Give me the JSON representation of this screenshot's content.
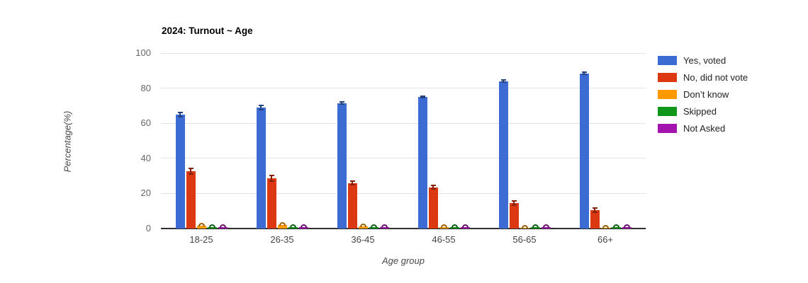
{
  "chart_data": {
    "type": "bar",
    "title": "2024: Turnout ~ Age",
    "xlabel": "Age group",
    "ylabel": "Percentage(%)",
    "categories": [
      "18-25",
      "26-35",
      "36-45",
      "46-55",
      "56-65",
      "66+"
    ],
    "series": [
      {
        "name": "Yes, voted",
        "color": "#3b6bd3",
        "values": [
          65,
          69,
          71.5,
          75,
          84,
          88.5
        ],
        "errors": [
          1.5,
          1.5,
          1,
          1,
          1,
          1
        ]
      },
      {
        "name": "No, did not vote",
        "color": "#dc3912",
        "values": [
          32.5,
          28.5,
          26,
          23.5,
          14.5,
          10.5
        ],
        "errors": [
          2,
          2,
          1.5,
          1.5,
          1.5,
          1.5
        ]
      },
      {
        "name": "Don’t know",
        "color": "#ff9900",
        "values": [
          1.5,
          2,
          1.2,
          1,
          0.5,
          0.3
        ],
        "errors": [
          0.6,
          0.6,
          0.5,
          0.5,
          0.4,
          0.3
        ]
      },
      {
        "name": "Skipped",
        "color": "#109618",
        "values": [
          1,
          0.8,
          0.8,
          0.8,
          0.8,
          0.9
        ],
        "errors": [
          0.5,
          0.4,
          0.4,
          0.4,
          0.4,
          0.4
        ]
      },
      {
        "name": "Not Asked",
        "color": "#a313ad",
        "values": [
          0.8,
          0.7,
          0.8,
          0.8,
          0.7,
          0.9
        ],
        "errors": [
          0.4,
          0.4,
          0.4,
          0.4,
          0.4,
          0.4
        ]
      }
    ],
    "ylim": [
      0,
      100
    ],
    "yticks": [
      0,
      20,
      40,
      60,
      80,
      100
    ],
    "grid": true,
    "legend_position": "right",
    "error_bars": true,
    "background_color": "#ffffff",
    "gridline_color": "#e3e3e3"
  }
}
